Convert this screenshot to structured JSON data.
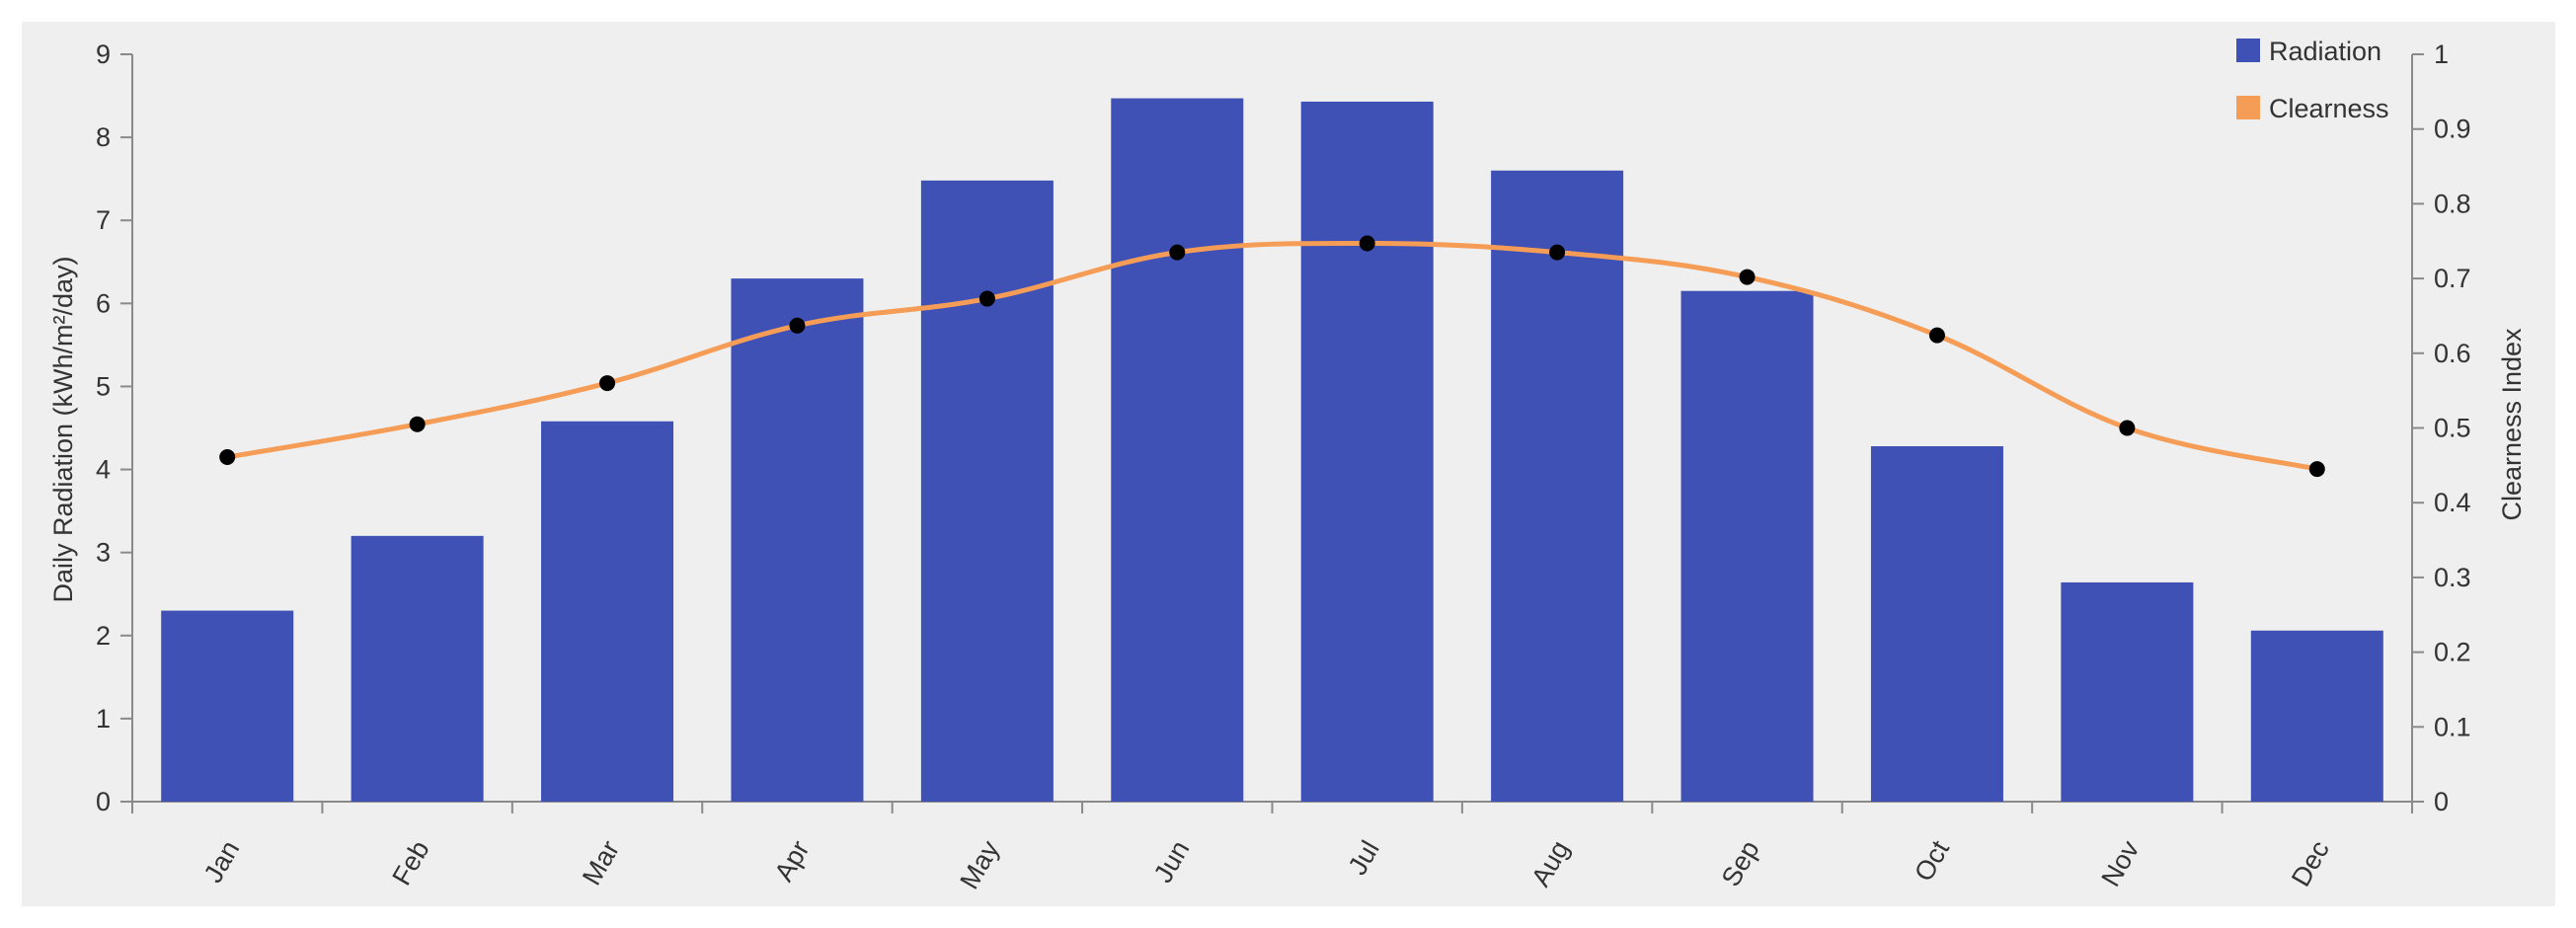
{
  "chart_data": {
    "type": "bar+line",
    "categories": [
      "Jan",
      "Feb",
      "Mar",
      "Apr",
      "May",
      "Jun",
      "Jul",
      "Aug",
      "Sep",
      "Oct",
      "Nov",
      "Dec"
    ],
    "series": [
      {
        "name": "Radiation",
        "type": "bar",
        "axis": "left",
        "color": "#3f51b5",
        "values": [
          2.3,
          3.2,
          4.58,
          6.3,
          7.48,
          8.47,
          8.43,
          7.6,
          6.15,
          4.28,
          2.64,
          2.06
        ]
      },
      {
        "name": "Clearness",
        "type": "line",
        "axis": "right",
        "color": "#f59d56",
        "marker_color": "#000000",
        "values": [
          0.461,
          0.505,
          0.56,
          0.637,
          0.673,
          0.735,
          0.747,
          0.735,
          0.702,
          0.624,
          0.5,
          0.445
        ]
      }
    ],
    "ylabel": "Daily Radiation (kWh/m²/day)",
    "ylim": [
      0,
      9
    ],
    "y_ticks": [
      "0",
      "1",
      "2",
      "3",
      "4",
      "5",
      "6",
      "7",
      "8",
      "9"
    ],
    "y2label": "Clearness Index",
    "y2lim": [
      0,
      1
    ],
    "y2_ticks": [
      "0",
      "0.1",
      "0.2",
      "0.3",
      "0.4",
      "0.5",
      "0.6",
      "0.7",
      "0.8",
      "0.9",
      "1"
    ],
    "grid": false,
    "legend_position": "top-right"
  }
}
